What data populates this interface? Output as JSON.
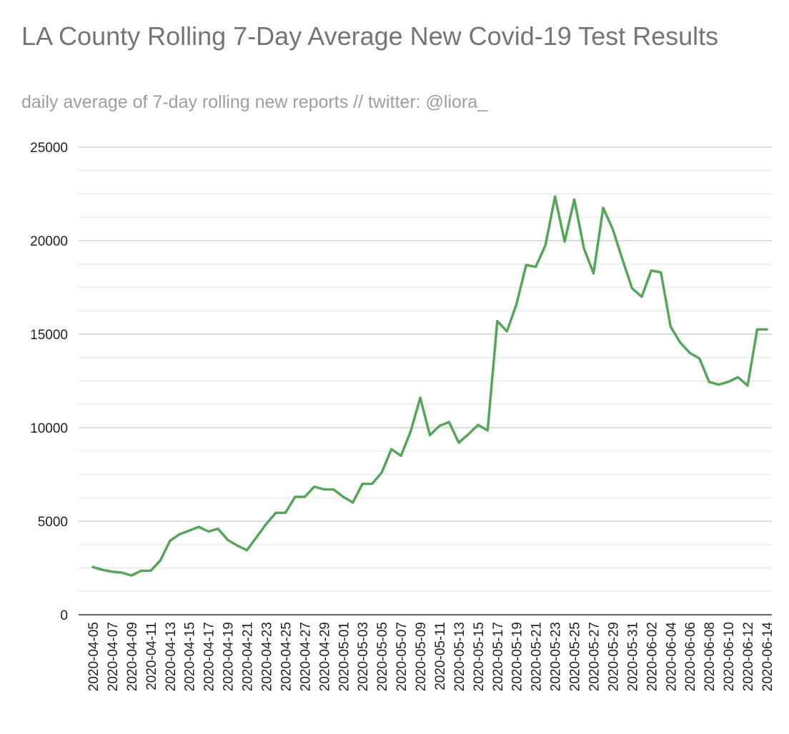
{
  "chart_data": {
    "type": "line",
    "title": "LA County Rolling 7-Day Average New Covid-19 Test Results",
    "subtitle": "daily average of 7-day rolling new reports // twitter: @liora_",
    "xlabel": "",
    "ylabel": "",
    "ylim": [
      0,
      25000
    ],
    "yticks": [
      0,
      5000,
      10000,
      15000,
      20000,
      25000
    ],
    "minor_gridlines": true,
    "legend": "none",
    "line_color": "#57a55a",
    "x": [
      "2020-04-05",
      "2020-04-06",
      "2020-04-07",
      "2020-04-08",
      "2020-04-09",
      "2020-04-10",
      "2020-04-11",
      "2020-04-12",
      "2020-04-13",
      "2020-04-14",
      "2020-04-15",
      "2020-04-16",
      "2020-04-17",
      "2020-04-18",
      "2020-04-19",
      "2020-04-20",
      "2020-04-21",
      "2020-04-22",
      "2020-04-23",
      "2020-04-24",
      "2020-04-25",
      "2020-04-26",
      "2020-04-27",
      "2020-04-28",
      "2020-04-29",
      "2020-04-30",
      "2020-05-01",
      "2020-05-02",
      "2020-05-03",
      "2020-05-04",
      "2020-05-05",
      "2020-05-06",
      "2020-05-07",
      "2020-05-08",
      "2020-05-09",
      "2020-05-10",
      "2020-05-11",
      "2020-05-12",
      "2020-05-13",
      "2020-05-14",
      "2020-05-15",
      "2020-05-16",
      "2020-05-17",
      "2020-05-18",
      "2020-05-19",
      "2020-05-20",
      "2020-05-21",
      "2020-05-22",
      "2020-05-23",
      "2020-05-24",
      "2020-05-25",
      "2020-05-26",
      "2020-05-27",
      "2020-05-28",
      "2020-05-29",
      "2020-05-30",
      "2020-05-31",
      "2020-06-01",
      "2020-06-02",
      "2020-06-03",
      "2020-06-04",
      "2020-06-05",
      "2020-06-06",
      "2020-06-07",
      "2020-06-08",
      "2020-06-09",
      "2020-06-10",
      "2020-06-11",
      "2020-06-12",
      "2020-06-13",
      "2020-06-14"
    ],
    "xtick_labels": [
      "2020-04-05",
      "2020-04-07",
      "2020-04-09",
      "2020-04-11",
      "2020-04-13",
      "2020-04-15",
      "2020-04-17",
      "2020-04-19",
      "2020-04-21",
      "2020-04-23",
      "2020-04-25",
      "2020-04-27",
      "2020-04-29",
      "2020-05-01",
      "2020-05-03",
      "2020-05-05",
      "2020-05-07",
      "2020-05-09",
      "2020-05-11",
      "2020-05-13",
      "2020-05-15",
      "2020-05-17",
      "2020-05-19",
      "2020-05-21",
      "2020-05-23",
      "2020-05-25",
      "2020-05-27",
      "2020-05-29",
      "2020-05-31",
      "2020-06-02",
      "2020-06-04",
      "2020-06-06",
      "2020-06-08",
      "2020-06-10",
      "2020-06-12",
      "2020-06-14"
    ],
    "series": [
      {
        "values": [
          2550,
          2400,
          2300,
          2250,
          2100,
          2350,
          2350,
          2900,
          3950,
          4300,
          4500,
          4700,
          4450,
          4600,
          4000,
          3700,
          3450,
          4150,
          4850,
          5450,
          5450,
          6300,
          6300,
          6850,
          6700,
          6700,
          6300,
          6000,
          7000,
          7000,
          7600,
          8850,
          8500,
          9800,
          11600,
          9600,
          10100,
          10300,
          9200,
          9650,
          10150,
          9850,
          15700,
          15150,
          16600,
          18700,
          18600,
          19750,
          22350,
          19950,
          22200,
          19600,
          18250,
          21750,
          20600,
          19000,
          17450,
          17000,
          18400,
          18300,
          15400,
          14550,
          14000,
          13700,
          12450,
          12300,
          12450,
          12700,
          12250,
          15250,
          15250
        ]
      }
    ]
  }
}
